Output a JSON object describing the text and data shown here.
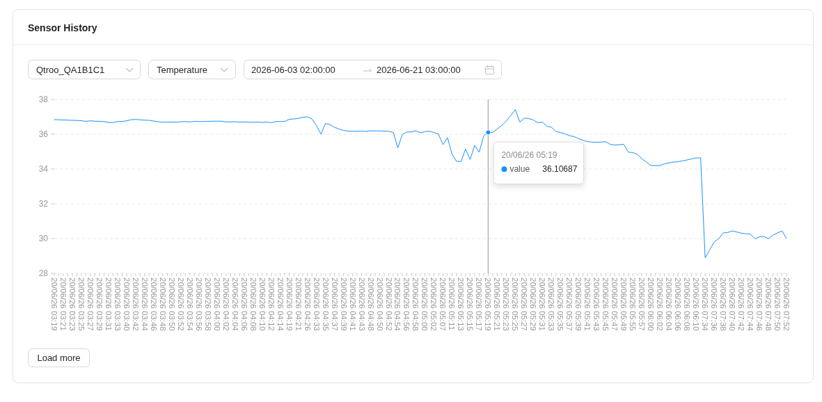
{
  "chart_data": {
    "type": "line",
    "title": "Sensor History",
    "categories": [
      "20/06/26 03:19",
      null,
      "20/06/26 03:21",
      null,
      "20/06/26 03:23",
      null,
      "20/06/26 03:25",
      null,
      "20/06/26 03:27",
      null,
      "20/06/26 03:29",
      null,
      "20/06/26 03:31",
      null,
      "20/06/26 03:33",
      null,
      "20/06/26 03:40",
      null,
      "20/06/26 03:42",
      null,
      "20/06/26 03:44",
      null,
      "20/06/26 03:46",
      null,
      "20/06/26 03:48",
      null,
      "20/06/26 03:50",
      null,
      "20/06/26 03:52",
      null,
      "20/06/26 03:54",
      null,
      "20/06/26 03:56",
      null,
      "20/06/26 03:58",
      null,
      "20/06/26 04:00",
      null,
      "20/06/26 04:02",
      null,
      "20/06/26 04:04",
      null,
      "20/06/26 04:06",
      null,
      "20/06/26 04:08",
      null,
      "20/06/26 04:10",
      null,
      "20/06/26 04:12",
      null,
      "20/06/26 04:14",
      null,
      "20/06/26 04:19",
      null,
      "20/06/26 04:21",
      null,
      "20/06/26 04:26",
      null,
      "20/06/26 04:33",
      null,
      "20/06/26 04:35",
      null,
      "20/06/26 04:37",
      null,
      "20/06/26 04:39",
      null,
      "20/06/26 04:41",
      null,
      "20/06/26 04:43",
      null,
      "20/06/26 04:48",
      null,
      "20/06/26 04:50",
      null,
      "20/06/26 04:52",
      null,
      "20/06/26 04:54",
      null,
      "20/06/26 04:56",
      null,
      "20/06/26 04:58",
      null,
      "20/06/26 05:00",
      null,
      "20/06/26 05:02",
      null,
      "20/06/26 05:07",
      null,
      "20/06/26 05:11",
      null,
      "20/06/26 05:13",
      null,
      "20/06/26 05:15",
      null,
      "20/06/26 05:17",
      null,
      "20/06/26 05:19",
      null,
      "20/06/26 05:21",
      null,
      "20/06/26 05:23",
      null,
      "20/06/26 05:25",
      null,
      "20/06/26 05:27",
      null,
      "20/06/26 05:29",
      null,
      "20/06/26 05:31",
      null,
      "20/06/26 05:33",
      null,
      "20/06/26 05:35",
      null,
      "20/06/26 05:37",
      null,
      "20/06/26 05:39",
      null,
      "20/06/26 05:41",
      null,
      "20/06/26 05:43",
      null,
      "20/06/26 05:45",
      null,
      "20/06/26 05:47",
      null,
      "20/06/26 05:49",
      null,
      "20/06/26 05:55",
      null,
      "20/06/26 05:57",
      null,
      "20/06/26 06:00",
      null,
      "20/06/26 06:02",
      null,
      "20/06/26 06:04",
      null,
      "20/06/26 06:06",
      null,
      "20/06/26 06:08",
      null,
      "20/06/26 06:10",
      null,
      "20/06/26 07:34",
      null,
      "20/06/26 07:36",
      null,
      "20/06/26 07:38",
      null,
      "20/06/26 07:40",
      null,
      "20/06/26 07:42",
      null,
      "20/06/26 07:44",
      null,
      "20/06/26 07:46",
      null,
      "20/06/26 07:48",
      null,
      "20/06/26 07:50",
      null,
      "20/06/26 07:52"
    ],
    "series": [
      {
        "name": "value",
        "color": "#1890ff",
        "values": [
          36.84,
          36.83,
          36.82,
          36.81,
          36.8,
          36.79,
          36.78,
          36.74,
          36.77,
          36.75,
          36.74,
          36.73,
          36.68,
          36.67,
          36.73,
          36.74,
          36.77,
          36.84,
          36.85,
          36.83,
          36.81,
          36.8,
          36.76,
          36.72,
          36.69,
          36.7,
          36.7,
          36.69,
          36.72,
          36.73,
          36.71,
          36.74,
          36.73,
          36.73,
          36.74,
          36.75,
          36.75,
          36.75,
          36.71,
          36.71,
          36.72,
          36.7,
          36.71,
          36.69,
          36.69,
          36.7,
          36.68,
          36.7,
          36.66,
          36.73,
          36.73,
          36.74,
          36.86,
          36.88,
          36.91,
          36.98,
          37.0,
          36.88,
          36.5,
          36.0,
          36.62,
          36.55,
          36.4,
          36.3,
          36.22,
          36.18,
          36.17,
          36.17,
          36.18,
          36.16,
          36.2,
          36.19,
          36.19,
          36.18,
          36.17,
          36.1,
          35.22,
          35.98,
          36.13,
          36.13,
          36.2,
          36.08,
          36.15,
          36.17,
          36.1,
          36.0,
          35.4,
          35.8,
          34.85,
          34.44,
          34.43,
          35.15,
          34.55,
          35.35,
          34.97,
          35.9,
          36.10687,
          36.1,
          36.31,
          36.5,
          36.76,
          37.08,
          37.41,
          36.7,
          36.93,
          36.9,
          36.82,
          36.66,
          36.7,
          36.46,
          36.4,
          36.16,
          36.1,
          36.02,
          35.92,
          35.86,
          35.75,
          35.65,
          35.57,
          35.55,
          35.53,
          35.55,
          35.57,
          35.42,
          35.38,
          35.4,
          35.42,
          34.97,
          34.95,
          34.85,
          34.59,
          34.4,
          34.2,
          34.2,
          34.2,
          34.3,
          34.35,
          34.4,
          34.42,
          34.47,
          34.52,
          34.58,
          34.64,
          34.64,
          28.89,
          29.34,
          29.8,
          30.0,
          30.32,
          30.35,
          30.44,
          30.38,
          30.31,
          30.28,
          30.25,
          29.99,
          30.1,
          30.12,
          29.99,
          30.2,
          30.32,
          30.44,
          30.02
        ]
      }
    ],
    "ylim": [
      28,
      38
    ],
    "yticks": [
      28,
      30,
      32,
      34,
      36,
      38
    ],
    "grid": "y",
    "marker": "none",
    "ref_lines": [
      {
        "axis": "x",
        "value": "20/06/26 05:19",
        "color": "#b3b3b3"
      }
    ],
    "annotations": [
      "Qtroo_QA1B1C1",
      "Temperature",
      "2026-06-03 02:00:00",
      "2026-06-21 03:00:00",
      "Load more",
      "20/06/26 05:19",
      "36.10687"
    ]
  }
}
